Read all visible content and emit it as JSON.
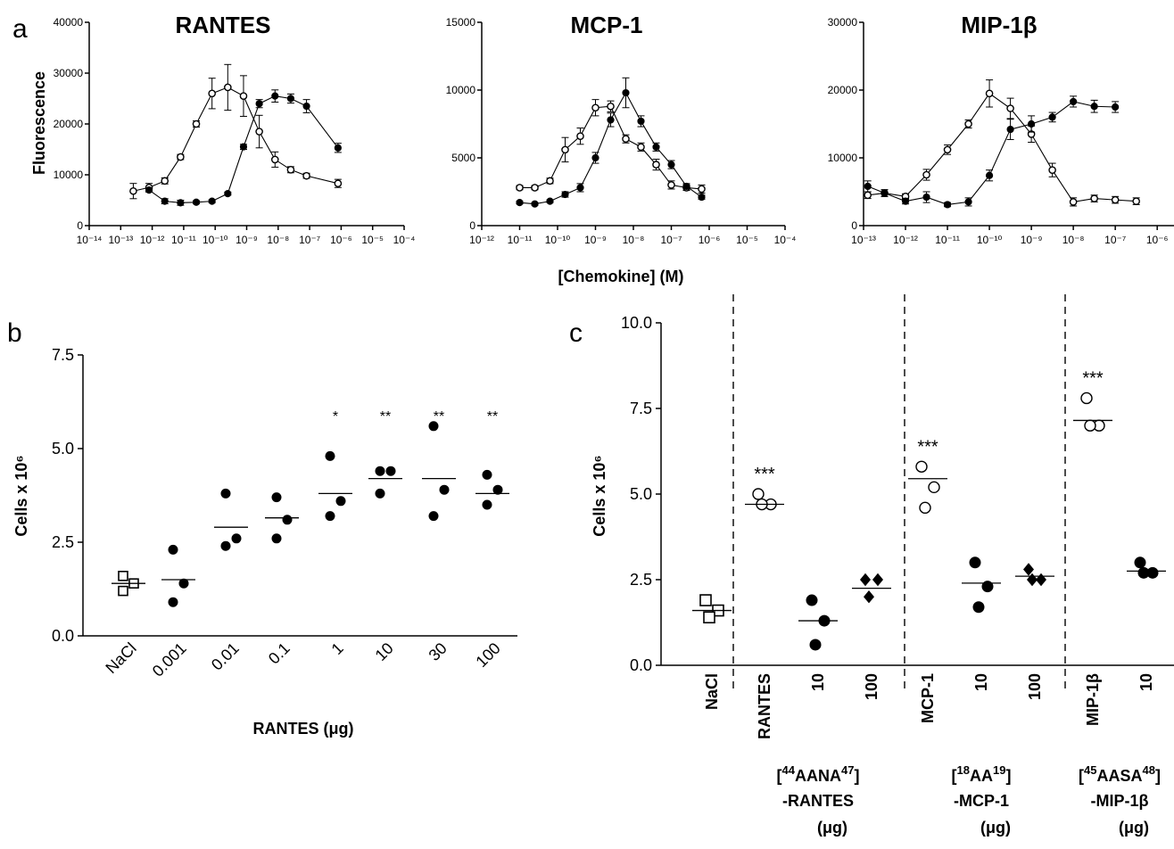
{
  "figure": {
    "panel_a_letter": "a",
    "panel_b_letter": "b",
    "panel_c_letter": "c",
    "shared_xlabel": "[Chemokine] (M)"
  },
  "chart_data": [
    {
      "panel": "a",
      "type": "line",
      "title": "RANTES",
      "ylabel": "Fluorescence",
      "xlabel": "[Chemokine] (M)",
      "xscale": "log",
      "xlim_exp": [
        -14,
        -4
      ],
      "ylim": [
        0,
        40000
      ],
      "yticks": [
        "0",
        "10000",
        "20000",
        "30000",
        "40000"
      ],
      "xtick_labels": [
        "10⁻¹⁴",
        "10⁻¹³",
        "10⁻¹²",
        "10⁻¹¹",
        "10⁻¹⁰",
        "10⁻⁹",
        "10⁻⁸",
        "10⁻⁷",
        "10⁻⁶",
        "10⁻⁵",
        "10⁻⁴"
      ],
      "series": [
        {
          "marker": "open-circle",
          "x_exp": [
            -12.6,
            -12.1,
            -11.6,
            -11.1,
            -10.6,
            -10.1,
            -9.6,
            -9.1,
            -8.6,
            -8.1,
            -7.6,
            -7.1,
            -6.1
          ],
          "y": [
            6800,
            7500,
            8800,
            13500,
            20000,
            26000,
            27200,
            25500,
            18500,
            13000,
            11000,
            9800,
            8300
          ],
          "err": [
            1500,
            800,
            600,
            500,
            600,
            3000,
            4500,
            4000,
            3200,
            1500,
            600,
            500,
            800
          ]
        },
        {
          "marker": "filled-circle",
          "x_exp": [
            -12.1,
            -11.6,
            -11.1,
            -10.6,
            -10.1,
            -9.6,
            -9.1,
            -8.6,
            -8.1,
            -7.6,
            -7.1,
            -6.1
          ],
          "y": [
            7000,
            4800,
            4500,
            4600,
            4800,
            6300,
            15500,
            24000,
            25500,
            25000,
            23500,
            15300
          ],
          "err": [
            400,
            500,
            500,
            300,
            300,
            300,
            500,
            800,
            1200,
            900,
            1300,
            900
          ]
        }
      ]
    },
    {
      "panel": "a",
      "type": "line",
      "title": "MCP-1",
      "xscale": "log",
      "xlim_exp": [
        -12,
        -4
      ],
      "ylim": [
        0,
        15000
      ],
      "yticks": [
        "0",
        "5000",
        "10000",
        "15000"
      ],
      "xtick_labels": [
        "10⁻¹²",
        "10⁻¹¹",
        "10⁻¹⁰",
        "10⁻⁹",
        "10⁻⁸",
        "10⁻⁷",
        "10⁻⁶",
        "10⁻⁵",
        "10⁻⁴"
      ],
      "series": [
        {
          "marker": "open-circle",
          "x_exp": [
            -11,
            -10.6,
            -10.2,
            -9.8,
            -9.4,
            -9,
            -8.6,
            -8.2,
            -7.8,
            -7.4,
            -7,
            -6.6,
            -6.2
          ],
          "y": [
            2800,
            2800,
            3300,
            5600,
            6600,
            8700,
            8800,
            6400,
            5800,
            4500,
            3000,
            2800,
            2700
          ],
          "err": [
            150,
            150,
            200,
            900,
            600,
            600,
            400,
            300,
            300,
            400,
            300,
            200,
            300
          ]
        },
        {
          "marker": "filled-circle",
          "x_exp": [
            -11,
            -10.6,
            -10.2,
            -9.8,
            -9.4,
            -9,
            -8.6,
            -8.2,
            -7.8,
            -7.4,
            -7,
            -6.6,
            -6.2
          ],
          "y": [
            1700,
            1600,
            1800,
            2300,
            2800,
            5000,
            7800,
            9800,
            7700,
            5800,
            4500,
            2900,
            2100
          ],
          "err": [
            100,
            100,
            100,
            200,
            300,
            400,
            500,
            1100,
            400,
            300,
            300,
            200,
            150
          ]
        }
      ]
    },
    {
      "panel": "a",
      "type": "line",
      "title": "MIP-1β",
      "xscale": "log",
      "xlim_exp": [
        -13,
        -5.6
      ],
      "ylim": [
        0,
        30000
      ],
      "yticks": [
        "0",
        "10000",
        "20000",
        "30000"
      ],
      "xtick_labels": [
        "10⁻¹³",
        "10⁻¹²",
        "10⁻¹¹",
        "10⁻¹⁰",
        "10⁻⁹",
        "10⁻⁸",
        "10⁻⁷",
        "10⁻⁶"
      ],
      "series": [
        {
          "marker": "open-circle",
          "x_exp": [
            -12.9,
            -12.5,
            -12,
            -11.5,
            -11,
            -10.5,
            -10,
            -9.5,
            -9,
            -8.5,
            -8,
            -7.5,
            -7,
            -6.5
          ],
          "y": [
            4500,
            4800,
            4300,
            7500,
            11200,
            15000,
            19500,
            17300,
            13500,
            8200,
            3500,
            4000,
            3800,
            3600
          ],
          "err": [
            500,
            500,
            400,
            800,
            700,
            600,
            2000,
            1500,
            1200,
            1000,
            600,
            500,
            500,
            500
          ]
        },
        {
          "marker": "filled-circle",
          "x_exp": [
            -12.9,
            -12.5,
            -12,
            -11.5,
            -11,
            -10.5,
            -10,
            -9.5,
            -9,
            -8.5,
            -8,
            -7.5,
            -7
          ],
          "y": [
            5800,
            4800,
            3600,
            4200,
            3100,
            3500,
            7400,
            14200,
            15000,
            16000,
            18300,
            17600,
            17500
          ],
          "err": [
            800,
            500,
            400,
            800,
            300,
            600,
            800,
            1500,
            1200,
            700,
            800,
            900,
            800
          ]
        }
      ]
    },
    {
      "panel": "b",
      "type": "scatter",
      "xlabel": "RANTES (μg)",
      "ylabel": "Cells x 10⁶",
      "ylim": [
        0,
        7.5
      ],
      "yticks": [
        "0.0",
        "2.5",
        "5.0",
        "7.5"
      ],
      "categories": [
        "NaCl",
        "0.001",
        "0.01",
        "0.1",
        "1",
        "10",
        "30",
        "100"
      ],
      "markers": [
        "open-square",
        "filled-circle",
        "filled-circle",
        "filled-circle",
        "filled-circle",
        "filled-circle",
        "filled-circle",
        "filled-circle"
      ],
      "points": [
        [
          1.6,
          1.4,
          1.2
        ],
        [
          2.3,
          1.4,
          0.9
        ],
        [
          3.8,
          2.6,
          2.4
        ],
        [
          3.7,
          3.1,
          2.6
        ],
        [
          4.8,
          3.6,
          3.2
        ],
        [
          4.4,
          4.4,
          3.8
        ],
        [
          5.6,
          3.9,
          3.2
        ],
        [
          4.3,
          3.9,
          3.5
        ]
      ],
      "means": [
        1.4,
        1.5,
        2.9,
        3.15,
        3.8,
        4.2,
        4.2,
        3.8
      ],
      "significance": [
        "",
        "",
        "",
        "",
        "*",
        "**",
        "**",
        "**"
      ]
    },
    {
      "panel": "c",
      "type": "scatter",
      "ylabel": "Cells x 10⁶",
      "ylim": [
        0,
        10
      ],
      "yticks": [
        "0.0",
        "2.5",
        "5.0",
        "7.5",
        "10.0"
      ],
      "categories": [
        "NaCl",
        "RANTES",
        "10",
        "100",
        "MCP-1",
        "10",
        "100",
        "MIP-1β",
        "10"
      ],
      "markers": [
        "open-square",
        "open-circle",
        "filled-circle",
        "filled-diamond",
        "open-circle",
        "filled-circle",
        "filled-diamond",
        "open-circle",
        "filled-circle"
      ],
      "points": [
        [
          1.9,
          1.6,
          1.4
        ],
        [
          5.0,
          4.7,
          4.7
        ],
        [
          1.9,
          1.3,
          0.6
        ],
        [
          2.5,
          2.5,
          2.0
        ],
        [
          5.8,
          5.2,
          4.6
        ],
        [
          3.0,
          2.3,
          1.7
        ],
        [
          2.8,
          2.5,
          2.5
        ],
        [
          7.8,
          7.0,
          7.0
        ],
        [
          3.0,
          2.7,
          2.7
        ]
      ],
      "means": [
        1.6,
        4.7,
        1.3,
        2.25,
        5.45,
        2.4,
        2.6,
        7.15,
        2.75
      ],
      "significance": [
        "",
        "***",
        "",
        "",
        "***",
        "",
        "",
        "***",
        ""
      ],
      "group_labels": [
        {
          "line1_pre": "[",
          "line1_sup_a": "44",
          "line1_mid": "AANA",
          "line1_sup_b": "47",
          "line1_post": "]",
          "line2": "-RANTES",
          "line3": "(μg)"
        },
        {
          "line1_pre": "[",
          "line1_sup_a": "18",
          "line1_mid": "AA",
          "line1_sup_b": "19",
          "line1_post": "]",
          "line2": "-MCP-1",
          "line3": "(μg)"
        },
        {
          "line1_pre": "[",
          "line1_sup_a": "45",
          "line1_mid": "AASA",
          "line1_sup_b": "48",
          "line1_post": "]",
          "line2": "-MIP-1β",
          "line3": "(μg)"
        }
      ]
    }
  ]
}
